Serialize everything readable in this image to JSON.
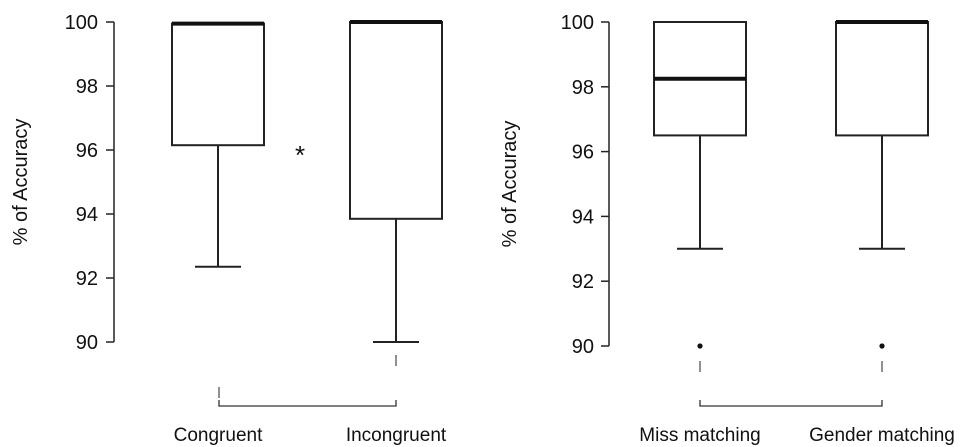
{
  "chart_data": [
    {
      "type": "box",
      "ylabel": "% of Accuracy",
      "ylim": [
        90,
        100
      ],
      "yticks": [
        "90",
        "92",
        "94",
        "96",
        "98",
        "100"
      ],
      "categories": [
        "Congruent",
        "Incongruent"
      ],
      "boxes": [
        {
          "name": "Congruent",
          "whisker_low": 92.35,
          "q1": 96.15,
          "median": 99.95,
          "q3": 99.95,
          "whisker_high": 99.95,
          "outliers": []
        },
        {
          "name": "Incongruent",
          "whisker_low": 90.0,
          "q1": 93.85,
          "median": 100.0,
          "q3": 100.0,
          "whisker_high": 100.0,
          "outliers": []
        }
      ],
      "annotations": [
        {
          "text": "*",
          "between": [
            0,
            1
          ]
        }
      ]
    },
    {
      "type": "box",
      "ylabel": "% of Accuracy",
      "ylim": [
        90,
        100
      ],
      "yticks": [
        "90",
        "92",
        "94",
        "96",
        "98",
        "100"
      ],
      "categories": [
        "Miss matching",
        "Gender matching"
      ],
      "boxes": [
        {
          "name": "Miss matching",
          "whisker_low": 93.0,
          "q1": 96.5,
          "median": 98.25,
          "q3": 100.0,
          "whisker_high": 100.0,
          "outliers": [
            90.0
          ]
        },
        {
          "name": "Gender matching",
          "whisker_low": 93.0,
          "q1": 96.5,
          "median": 100.0,
          "q3": 100.0,
          "whisker_high": 100.0,
          "outliers": [
            90.0
          ]
        }
      ],
      "annotations": []
    }
  ]
}
